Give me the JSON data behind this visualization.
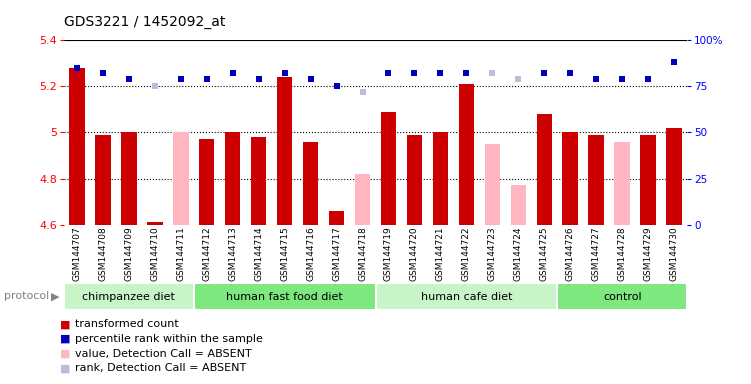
{
  "title": "GDS3221 / 1452092_at",
  "samples": [
    "GSM144707",
    "GSM144708",
    "GSM144709",
    "GSM144710",
    "GSM144711",
    "GSM144712",
    "GSM144713",
    "GSM144714",
    "GSM144715",
    "GSM144716",
    "GSM144717",
    "GSM144718",
    "GSM144719",
    "GSM144720",
    "GSM144721",
    "GSM144722",
    "GSM144723",
    "GSM144724",
    "GSM144725",
    "GSM144726",
    "GSM144727",
    "GSM144728",
    "GSM144729",
    "GSM144730"
  ],
  "values": [
    5.28,
    4.99,
    5.0,
    4.61,
    5.0,
    4.97,
    5.0,
    4.98,
    5.24,
    4.96,
    4.66,
    4.82,
    5.09,
    4.99,
    5.0,
    5.21,
    4.95,
    4.77,
    5.08,
    5.0,
    4.99,
    4.96,
    4.99,
    5.02
  ],
  "absent": [
    false,
    false,
    false,
    false,
    true,
    false,
    false,
    false,
    false,
    false,
    false,
    true,
    false,
    false,
    false,
    false,
    true,
    true,
    false,
    false,
    false,
    true,
    false,
    false
  ],
  "ranks": [
    85,
    82,
    79,
    75,
    79,
    79,
    82,
    79,
    82,
    79,
    75,
    72,
    82,
    82,
    82,
    82,
    82,
    79,
    82,
    82,
    79,
    79,
    79,
    88
  ],
  "rank_absent": [
    false,
    false,
    false,
    true,
    false,
    false,
    false,
    false,
    false,
    false,
    false,
    true,
    false,
    false,
    false,
    false,
    true,
    true,
    false,
    false,
    false,
    false,
    false,
    false
  ],
  "groups": [
    {
      "label": "chimpanzee diet",
      "start": 0,
      "end": 4
    },
    {
      "label": "human fast food diet",
      "start": 5,
      "end": 11
    },
    {
      "label": "human cafe diet",
      "start": 12,
      "end": 18
    },
    {
      "label": "control",
      "start": 19,
      "end": 23
    }
  ],
  "group_colors": [
    "#c8f5c8",
    "#7de87d",
    "#c8f5c8",
    "#7de87d"
  ],
  "ylim_left": [
    4.6,
    5.4
  ],
  "ylim_right": [
    0,
    100
  ],
  "bar_color": "#CC0000",
  "absent_bar_color": "#FFB6C1",
  "rank_color": "#0000BB",
  "rank_absent_color": "#BBBBDD",
  "plot_bg_color": "#FFFFFF",
  "sample_bg_color": "#D3D3D3",
  "rank_marker_size": 5
}
